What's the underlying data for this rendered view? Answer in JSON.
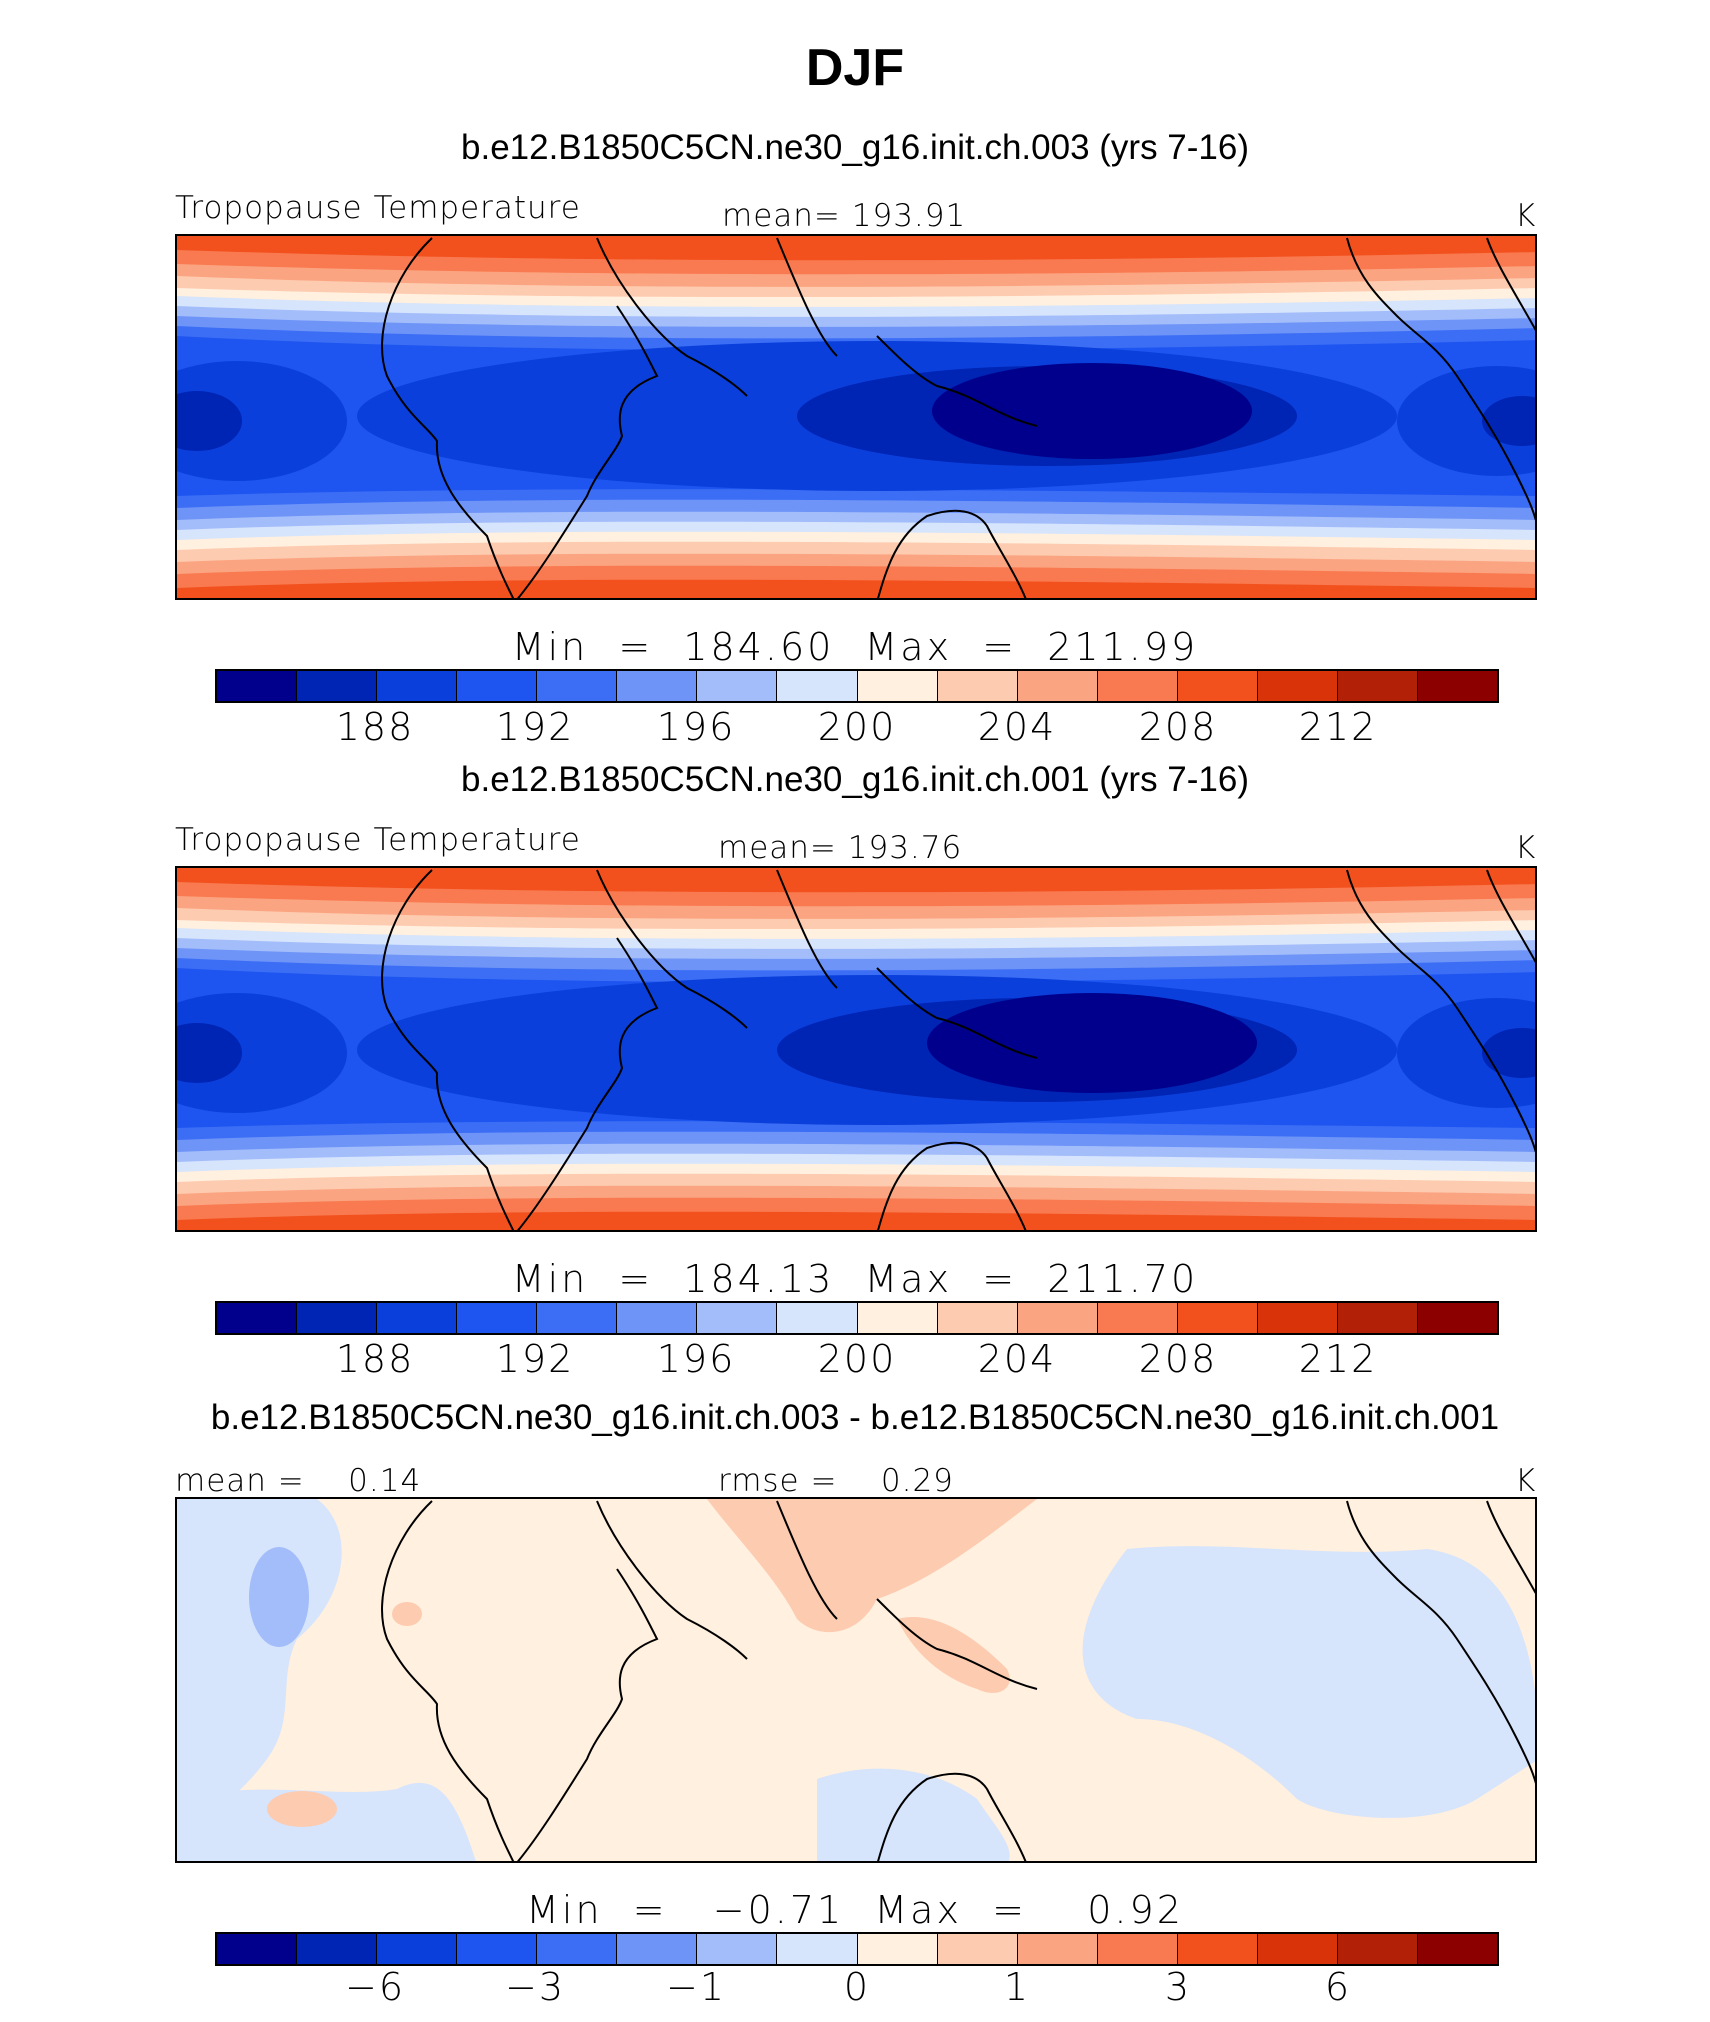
{
  "title": "DJF",
  "palette": [
    "#00008c",
    "#0024b3",
    "#0a3fdb",
    "#1e55f0",
    "#3c6ef5",
    "#6e94f7",
    "#a3bdfa",
    "#d6e4fc",
    "#fff0df",
    "#fdcbb0",
    "#fba481",
    "#f97a50",
    "#f2511e",
    "#d93309",
    "#b22107",
    "#8c0000"
  ],
  "panels": [
    {
      "case_title": "b.e12.B1850C5CN.ne30_g16.init.ch.003 (yrs 7-16)",
      "left_label": "Tropopause Temperature",
      "center_label": "mean= 193.91",
      "units": "K",
      "minmax": "Min  =  184.60  Max  =  211.99",
      "colorbar_ticks": [
        "188",
        "192",
        "196",
        "200",
        "204",
        "208",
        "212"
      ]
    },
    {
      "case_title": "b.e12.B1850C5CN.ne30_g16.init.ch.001 (yrs 7-16)",
      "left_label": "Tropopause Temperature",
      "center_label": "mean= 193.76",
      "units": "K",
      "minmax": "Min  =  184.13  Max  =  211.70",
      "colorbar_ticks": [
        "188",
        "192",
        "196",
        "200",
        "204",
        "208",
        "212"
      ]
    },
    {
      "case_title": "b.e12.B1850C5CN.ne30_g16.init.ch.003 - b.e12.B1850C5CN.ne30_g16.init.ch.001",
      "left_label": "mean =    0.14",
      "center_label": "rmse =    0.29",
      "units": "K",
      "minmax": "Min  =   −0.71  Max  =    0.92",
      "colorbar_ticks": [
        "−6",
        "−3",
        "−1",
        "0",
        "1",
        "3",
        "6"
      ]
    }
  ]
}
